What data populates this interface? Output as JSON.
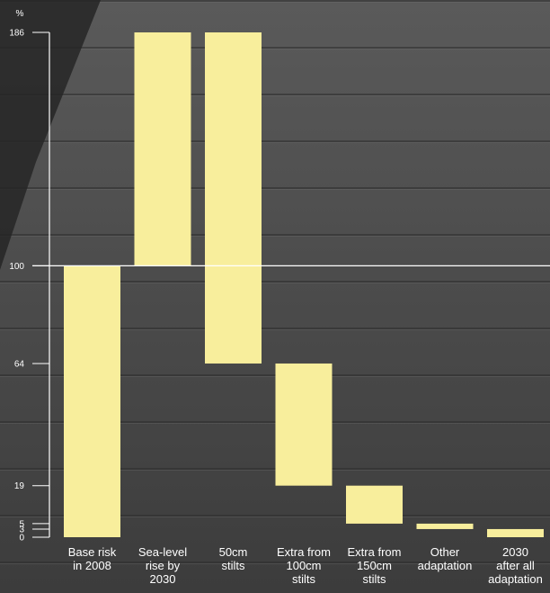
{
  "chart_data": {
    "type": "bar",
    "variant": "waterfall",
    "title": "",
    "xlabel": "",
    "ylabel": "%",
    "ylim": [
      0,
      186
    ],
    "y_ticks": [
      0,
      3,
      5,
      19,
      64,
      100,
      186
    ],
    "reference_line": 100,
    "grid": false,
    "legend": "none",
    "bar_color": "#f8ee9c",
    "categories": [
      [
        "Base risk",
        "in 2008"
      ],
      [
        "Sea-level",
        "rise by",
        "2030"
      ],
      [
        "50cm",
        "stilts"
      ],
      [
        "Extra from",
        "100cm",
        "stilts"
      ],
      [
        "Extra from",
        "150cm",
        "stilts"
      ],
      [
        "Other",
        "adaptation"
      ],
      [
        "2030",
        "after all",
        "adaptation"
      ]
    ],
    "bars": [
      {
        "from": 0,
        "to": 100
      },
      {
        "from": 100,
        "to": 186
      },
      {
        "from": 186,
        "to": 64
      },
      {
        "from": 64,
        "to": 19
      },
      {
        "from": 19,
        "to": 5
      },
      {
        "from": 5,
        "to": 3
      },
      {
        "from": 3,
        "to": 0
      }
    ]
  }
}
